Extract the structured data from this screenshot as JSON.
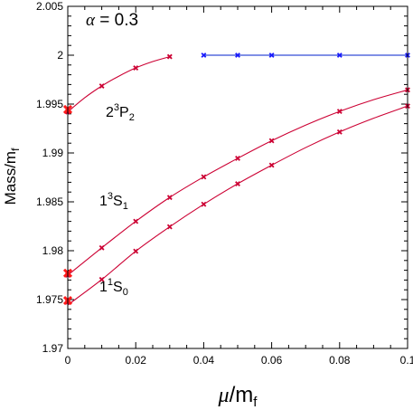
{
  "chart_data": {
    "type": "line",
    "title": "",
    "xlabel": {
      "symbol": "μ",
      "slash": "/",
      "base": "m",
      "sub": "f"
    },
    "ylabel": {
      "base": "Mass/m",
      "sub": "f"
    },
    "xlim": [
      0,
      0.1
    ],
    "ylim": [
      1.97,
      2.005
    ],
    "xticks": [
      {
        "v": 0,
        "label": "0"
      },
      {
        "v": 0.02,
        "label": "0.02"
      },
      {
        "v": 0.04,
        "label": "0.04"
      },
      {
        "v": 0.06,
        "label": "0.06"
      },
      {
        "v": 0.08,
        "label": "0.08"
      },
      {
        "v": 0.1,
        "label": "0.1"
      }
    ],
    "yticks": [
      {
        "v": 1.97,
        "label": "1.97"
      },
      {
        "v": 1.975,
        "label": "1.975"
      },
      {
        "v": 1.98,
        "label": "1.98"
      },
      {
        "v": 1.985,
        "label": "1.985"
      },
      {
        "v": 1.99,
        "label": "1.99"
      },
      {
        "v": 1.995,
        "label": "1.995"
      },
      {
        "v": 2.0,
        "label": "2"
      },
      {
        "v": 2.005,
        "label": "2.005"
      }
    ],
    "annotations": {
      "alpha": {
        "symbol": "α",
        "eq": " = ",
        "value": "0.3"
      },
      "state_2p2": {
        "pre": "2",
        "sup": "3",
        "mid": "P",
        "sub": "2"
      },
      "state_1s1": {
        "pre": "1",
        "sup": "3",
        "mid": "S",
        "sub": "1"
      },
      "state_1s0": {
        "pre": "1",
        "sup": "1",
        "mid": "S",
        "sub": "0"
      }
    },
    "series": [
      {
        "color": "#cc0033",
        "marker_color": "#cc0033",
        "x": [
          0,
          0.01,
          0.02,
          0.03
        ],
        "y": [
          1.9942,
          1.99685,
          1.9987,
          1.99985
        ],
        "curve_x": [
          0,
          0.005,
          0.01,
          0.015,
          0.02,
          0.025,
          0.03
        ],
        "curve_y": [
          1.9942,
          1.99565,
          1.99685,
          1.99785,
          1.9987,
          1.99935,
          1.99985
        ]
      },
      {
        "color": "#0022cc",
        "marker_color": "#1a1aff",
        "x": [
          0.04,
          0.05,
          0.06,
          0.08,
          0.1
        ],
        "y": [
          2.0,
          2.0,
          2.0,
          2.0,
          2.0
        ],
        "curve_x": [
          0.04,
          0.1
        ],
        "curve_y": [
          2.0,
          2.0
        ]
      },
      {
        "color": "#cc0033",
        "marker_color": "#cc0033",
        "x": [
          0,
          0.01,
          0.02,
          0.03,
          0.04,
          0.05,
          0.06,
          0.08,
          0.1
        ],
        "y": [
          1.9775,
          1.9803,
          1.983,
          1.98545,
          1.98755,
          1.98945,
          1.99125,
          1.99425,
          1.99645
        ],
        "curve_x": [
          0,
          0.01,
          0.02,
          0.03,
          0.04,
          0.05,
          0.06,
          0.07,
          0.08,
          0.09,
          0.1
        ],
        "curve_y": [
          1.9775,
          1.9803,
          1.983,
          1.98545,
          1.98755,
          1.98945,
          1.99125,
          1.99285,
          1.99425,
          1.99545,
          1.99645
        ]
      },
      {
        "color": "#cc0033",
        "marker_color": "#cc0033",
        "x": [
          0,
          0.01,
          0.02,
          0.03,
          0.04,
          0.05,
          0.06,
          0.08,
          0.1
        ],
        "y": [
          1.97475,
          1.97705,
          1.97995,
          1.98245,
          1.98475,
          1.98685,
          1.98875,
          1.99215,
          1.9948
        ],
        "curve_x": [
          0,
          0.01,
          0.02,
          0.03,
          0.04,
          0.05,
          0.06,
          0.07,
          0.08,
          0.09,
          0.1
        ],
        "curve_y": [
          1.97445,
          1.97705,
          1.97995,
          1.98245,
          1.98475,
          1.98685,
          1.98875,
          1.99055,
          1.99215,
          1.99355,
          1.9948
        ]
      }
    ],
    "extrapolated_points": {
      "color": "#ff1a1a",
      "points": [
        {
          "x": 0,
          "y": 1.99445
        },
        {
          "x": 0,
          "y": 1.9777
        },
        {
          "x": 0,
          "y": 1.9749
        }
      ]
    }
  }
}
